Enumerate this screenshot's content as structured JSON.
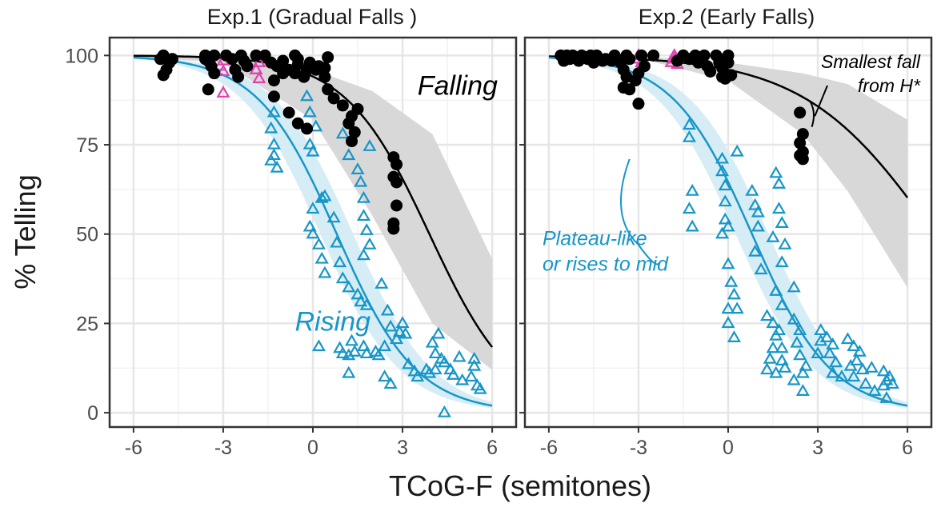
{
  "chart_data": [
    {
      "type": "scatter",
      "title": "Exp.1 (Gradual Falls )",
      "xlabel": "TCoG-F (semitones)",
      "ylabel": "% Telling",
      "xlim": [
        -6.8,
        6.8
      ],
      "ylim": [
        -4,
        105
      ],
      "x_ticks": [
        -6,
        -3,
        0,
        3,
        6
      ],
      "x_tick_labels": [
        "-6",
        "-3",
        "0",
        "3",
        "6"
      ],
      "y_ticks": [
        0,
        25,
        50,
        75,
        100
      ],
      "y_tick_labels": [
        "0",
        "25",
        "50",
        "75",
        "100"
      ],
      "grid": true,
      "colors": {
        "falling": "#000000",
        "rising": "#1896c8",
        "rising_band": "#d2ebf5",
        "falling_band": "#d6d6d6",
        "magenta": "#e040b0"
      },
      "curves": [
        {
          "name": "Falling",
          "color": "#000000",
          "x0": 3.9,
          "k": 0.71,
          "band": [
            [
              -6,
              99.6,
              99.9
            ],
            [
              -3,
              98,
              99.7
            ],
            [
              0,
              82,
              96
            ],
            [
              2,
              55,
              90
            ],
            [
              4,
              25,
              78
            ],
            [
              6,
              12,
              43
            ]
          ]
        },
        {
          "name": "Rising",
          "color": "#1896c8",
          "x0": 0.8,
          "k": 0.75,
          "band_halfwidth_x": 0.55
        }
      ],
      "annotations": [
        {
          "text": "Falling",
          "x": 3.5,
          "y": 89,
          "color": "#000000"
        },
        {
          "text": "Rising",
          "x": -0.6,
          "y": 23,
          "color": "#1896c8"
        }
      ],
      "falling_points": [
        [
          -5,
          100
        ],
        [
          -5.1,
          99
        ],
        [
          -4.8,
          98
        ],
        [
          -4.9,
          96
        ],
        [
          -5,
          94.5
        ],
        [
          -4.7,
          99
        ],
        [
          -3.6,
          100
        ],
        [
          -3.5,
          98.5
        ],
        [
          -3.3,
          100
        ],
        [
          -3.6,
          99
        ],
        [
          -3.4,
          97
        ],
        [
          -3.3,
          95
        ],
        [
          -3.5,
          90.5
        ],
        [
          -2.9,
          100
        ],
        [
          -2.7,
          99
        ],
        [
          -2.6,
          96
        ],
        [
          -2.4,
          100
        ],
        [
          -2.3,
          98.5
        ],
        [
          -2.2,
          97
        ],
        [
          -2.5,
          94
        ],
        [
          -1.9,
          100
        ],
        [
          -1.6,
          100
        ],
        [
          -1.4,
          98
        ],
        [
          -1.2,
          97
        ],
        [
          -1.0,
          98.5
        ],
        [
          -1.3,
          93
        ],
        [
          -1.0,
          95
        ],
        [
          -0.8,
          96
        ],
        [
          -0.6,
          95
        ],
        [
          -0.5,
          97.5
        ],
        [
          -0.6,
          100
        ],
        [
          -0.5,
          99
        ],
        [
          -0.3,
          94
        ],
        [
          -0.2,
          96
        ],
        [
          -0.1,
          98
        ],
        [
          0.1,
          96
        ],
        [
          0.4,
          96.5
        ],
        [
          0.5,
          99.5
        ],
        [
          0.4,
          94
        ],
        [
          -1.3,
          88.5
        ],
        [
          -0.8,
          84
        ],
        [
          -0.5,
          81
        ],
        [
          -0.2,
          79.5
        ],
        [
          0.2,
          97
        ],
        [
          0.5,
          90.5
        ],
        [
          0.7,
          88
        ],
        [
          1.0,
          86
        ],
        [
          1.2,
          81
        ],
        [
          1.4,
          78.5
        ],
        [
          1.3,
          76
        ],
        [
          1.5,
          85
        ],
        [
          1.3,
          83
        ],
        [
          2.7,
          71.5
        ],
        [
          2.8,
          69.5
        ],
        [
          2.7,
          66
        ],
        [
          2.8,
          64.5
        ],
        [
          2.8,
          58
        ],
        [
          2.7,
          53
        ],
        [
          2.7,
          51.5
        ]
      ],
      "rising_points": [
        [
          -1.3,
          84
        ],
        [
          -1.4,
          79.5
        ],
        [
          -1.3,
          75
        ],
        [
          -1.3,
          72
        ],
        [
          -1.4,
          70.5
        ],
        [
          -1.2,
          68.5
        ],
        [
          -0.2,
          88.5
        ],
        [
          -0.1,
          84
        ],
        [
          0.1,
          80
        ],
        [
          -0.1,
          75
        ],
        [
          0.0,
          73
        ],
        [
          0.3,
          60
        ],
        [
          0.0,
          57
        ],
        [
          -0.1,
          52
        ],
        [
          0.0,
          50
        ],
        [
          0.2,
          47
        ],
        [
          0.3,
          43
        ],
        [
          0.4,
          39
        ],
        [
          0.4,
          60.5
        ],
        [
          0.7,
          54.5
        ],
        [
          0.8,
          47.5
        ],
        [
          0.9,
          42
        ],
        [
          1.0,
          37.5
        ],
        [
          1.2,
          35
        ],
        [
          1.0,
          78
        ],
        [
          1.2,
          72
        ],
        [
          1.5,
          68
        ],
        [
          1.6,
          64.5
        ],
        [
          1.7,
          60
        ],
        [
          1.7,
          55
        ],
        [
          1.8,
          51
        ],
        [
          1.9,
          47
        ],
        [
          1.9,
          74.5
        ],
        [
          1.7,
          44
        ],
        [
          1.5,
          33
        ],
        [
          1.6,
          31
        ],
        [
          1.8,
          30
        ],
        [
          2.3,
          36
        ],
        [
          2.5,
          28.5
        ],
        [
          2.6,
          24
        ],
        [
          2.8,
          20.5
        ],
        [
          2.9,
          22.5
        ],
        [
          3.0,
          25
        ],
        [
          3.1,
          22
        ],
        [
          2.4,
          18.5
        ],
        [
          2.1,
          17
        ],
        [
          2.2,
          16
        ],
        [
          1.7,
          18.5
        ],
        [
          1.8,
          16.5
        ],
        [
          1.4,
          17
        ],
        [
          1.3,
          20
        ],
        [
          1.2,
          16
        ],
        [
          1.0,
          16.5
        ],
        [
          0.9,
          18
        ],
        [
          0.2,
          18.5
        ],
        [
          1.2,
          11
        ],
        [
          2.4,
          10
        ],
        [
          2.6,
          8
        ],
        [
          3.2,
          13.5
        ],
        [
          3.4,
          11.5
        ],
        [
          3.5,
          10
        ],
        [
          3.8,
          12
        ],
        [
          3.9,
          11
        ],
        [
          4.1,
          12
        ],
        [
          4.0,
          19.5
        ],
        [
          4.2,
          22
        ],
        [
          4.1,
          16.5
        ],
        [
          4.3,
          15
        ],
        [
          4.4,
          14
        ],
        [
          4.6,
          12
        ],
        [
          4.9,
          15.5
        ],
        [
          5.0,
          9
        ],
        [
          4.7,
          10.5
        ],
        [
          5.4,
          13
        ],
        [
          5.3,
          10
        ],
        [
          5.5,
          7.5
        ],
        [
          5.6,
          6.5
        ],
        [
          5.4,
          15
        ],
        [
          4.4,
          0
        ]
      ],
      "magenta_points": [
        [
          -3,
          98.5
        ],
        [
          -3.1,
          97
        ],
        [
          -3,
          95.5
        ],
        [
          -3,
          89.5
        ],
        [
          -1.8,
          98
        ],
        [
          -1.9,
          96
        ],
        [
          -1.8,
          93.5
        ]
      ]
    },
    {
      "type": "scatter",
      "title": "Exp.2 (Early Falls)",
      "xlabel": "TCoG-F (semitones)",
      "ylabel": "% Telling",
      "xlim": [
        -6.8,
        6.8
      ],
      "ylim": [
        -4,
        105
      ],
      "x_ticks": [
        -6,
        -3,
        0,
        3,
        6
      ],
      "x_tick_labels": [
        "-6",
        "-3",
        "0",
        "3",
        "6"
      ],
      "y_ticks": [
        0,
        25,
        50,
        75,
        100
      ],
      "grid": true,
      "curves": [
        {
          "name": "Falling",
          "color": "#000000",
          "x0": 6.9,
          "k": 0.46,
          "band": [
            [
              -3,
              99.2,
              99.8
            ],
            [
              0,
              93,
              98
            ],
            [
              2.5,
              78,
              95
            ],
            [
              4,
              62,
              92
            ],
            [
              6,
              35,
              82
            ]
          ]
        },
        {
          "name": "Rising",
          "color": "#1896c8",
          "x0": 0.8,
          "k": 0.75,
          "band_halfwidth_x": 0.55
        }
      ],
      "annotations": [
        {
          "text_lines": [
            "Smallest fall",
            "from H*"
          ],
          "x": 4.3,
          "y": 95,
          "color": "#000000"
        },
        {
          "text_lines": [
            "Plateau-like",
            "or rises to mid"
          ],
          "x": -1.6,
          "y": 48,
          "color": "#1896c8"
        }
      ],
      "falling_points": [
        [
          -5.6,
          100
        ],
        [
          -5.5,
          98.5
        ],
        [
          -5.4,
          100
        ],
        [
          -5.3,
          99
        ],
        [
          -5.2,
          100
        ],
        [
          -5.0,
          98.5
        ],
        [
          -4.9,
          100
        ],
        [
          -4.7,
          99
        ],
        [
          -4.6,
          100
        ],
        [
          -4.5,
          98
        ],
        [
          -4.4,
          100
        ],
        [
          -4.2,
          98.5
        ],
        [
          -4.1,
          99
        ],
        [
          -3.9,
          98.5
        ],
        [
          -3.8,
          100
        ],
        [
          -3.6,
          98
        ],
        [
          -3.5,
          96
        ],
        [
          -3.4,
          100
        ],
        [
          -3.3,
          99
        ],
        [
          -3.4,
          94
        ],
        [
          -3.5,
          91
        ],
        [
          -3.3,
          90.5
        ],
        [
          -3.1,
          93
        ],
        [
          -3.0,
          86.5
        ],
        [
          -3.0,
          95
        ],
        [
          -2.8,
          97
        ],
        [
          -2.9,
          100
        ],
        [
          -2.5,
          100
        ],
        [
          -1.7,
          98.5
        ],
        [
          -1.5,
          100
        ],
        [
          -1.3,
          99
        ],
        [
          -1.1,
          100
        ],
        [
          -1.0,
          98
        ],
        [
          -0.8,
          100
        ],
        [
          -0.7,
          97
        ],
        [
          -0.6,
          95.5
        ],
        [
          -0.4,
          100
        ],
        [
          -0.3,
          98
        ],
        [
          -0.2,
          96.5
        ],
        [
          -0.1,
          99
        ],
        [
          0.0,
          100
        ],
        [
          0.0,
          98
        ],
        [
          -0.2,
          94
        ],
        [
          -0.1,
          93.5
        ],
        [
          0.1,
          94.5
        ],
        [
          2.4,
          84
        ],
        [
          2.5,
          78
        ],
        [
          2.4,
          75.5
        ],
        [
          2.5,
          73
        ],
        [
          2.4,
          72
        ],
        [
          2.5,
          71
        ]
      ],
      "rising_points": [
        [
          -1.3,
          80.5
        ],
        [
          -1.3,
          77
        ],
        [
          -1.2,
          62
        ],
        [
          -1.3,
          57
        ],
        [
          -1.2,
          52
        ],
        [
          -0.2,
          71
        ],
        [
          -0.2,
          67.5
        ],
        [
          -0.1,
          63.5
        ],
        [
          -0.1,
          59
        ],
        [
          -0.1,
          54
        ],
        [
          0.0,
          52
        ],
        [
          -0.2,
          50
        ],
        [
          0.3,
          73
        ],
        [
          0.0,
          41.5
        ],
        [
          0.1,
          36.5
        ],
        [
          0.2,
          33
        ],
        [
          0.0,
          29
        ],
        [
          0.3,
          29
        ],
        [
          0.0,
          25
        ],
        [
          0.2,
          21
        ],
        [
          0.8,
          62
        ],
        [
          0.9,
          58
        ],
        [
          1.0,
          56
        ],
        [
          1.0,
          52
        ],
        [
          0.9,
          45
        ],
        [
          1.1,
          40
        ],
        [
          1.3,
          27
        ],
        [
          1.5,
          25
        ],
        [
          1.6,
          21.5
        ],
        [
          1.5,
          18
        ],
        [
          1.4,
          15
        ],
        [
          1.3,
          12
        ],
        [
          1.6,
          11
        ],
        [
          1.5,
          49
        ],
        [
          1.6,
          34
        ],
        [
          1.8,
          30
        ],
        [
          1.7,
          23
        ],
        [
          1.8,
          18
        ],
        [
          1.8,
          14.5
        ],
        [
          1.9,
          12.5
        ],
        [
          1.6,
          67
        ],
        [
          1.7,
          64
        ],
        [
          1.7,
          57
        ],
        [
          1.8,
          53
        ],
        [
          1.9,
          47
        ],
        [
          1.8,
          42
        ],
        [
          2.2,
          35
        ],
        [
          2.2,
          26
        ],
        [
          2.4,
          23
        ],
        [
          2.3,
          19.5
        ],
        [
          2.4,
          16
        ],
        [
          2.6,
          13
        ],
        [
          2.5,
          11
        ],
        [
          2.2,
          9
        ],
        [
          2.5,
          6
        ],
        [
          3.0,
          16.5
        ],
        [
          3.1,
          20
        ],
        [
          3.1,
          23
        ],
        [
          3.3,
          21
        ],
        [
          3.5,
          19
        ],
        [
          3.4,
          16.5
        ],
        [
          3.6,
          14
        ],
        [
          3.5,
          11
        ],
        [
          3.8,
          10
        ],
        [
          4.0,
          20.5
        ],
        [
          4.2,
          18.5
        ],
        [
          4.4,
          17
        ],
        [
          4.3,
          14.5
        ],
        [
          4.1,
          13
        ],
        [
          4.5,
          12
        ],
        [
          4.2,
          10
        ],
        [
          4.8,
          12.5
        ],
        [
          4.6,
          8
        ],
        [
          4.9,
          6
        ],
        [
          5.2,
          11.5
        ],
        [
          5.3,
          9
        ],
        [
          5.2,
          7.5
        ],
        [
          5.4,
          10
        ],
        [
          5.5,
          8
        ],
        [
          5.3,
          4
        ]
      ],
      "magenta_points": [
        [
          -3,
          100
        ],
        [
          -3.0,
          99
        ],
        [
          -2.9,
          98
        ],
        [
          -1.8,
          100
        ],
        [
          -1.8,
          99
        ],
        [
          -1.9,
          98
        ],
        [
          -1.7,
          97.5
        ]
      ]
    }
  ]
}
